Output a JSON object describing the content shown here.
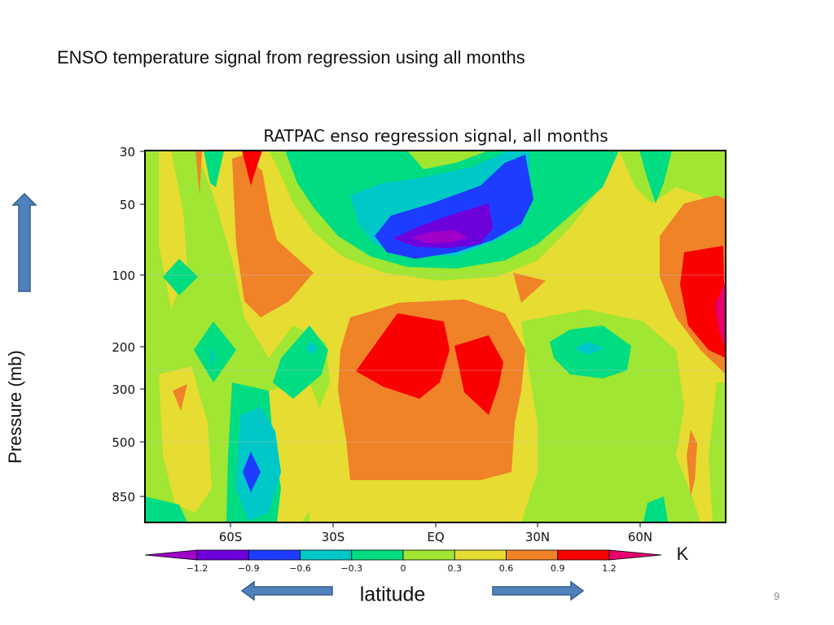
{
  "slide": {
    "title": "ENSO temperature signal from regression using all months",
    "page_number": "9",
    "y_side_label": "Pressure (mb)",
    "x_bottom_label": "latitude"
  },
  "icons": {
    "up_arrow": "up-arrow-icon",
    "left_arrow": "left-arrow-icon",
    "right_arrow": "right-arrow-icon"
  },
  "colors": {
    "arrow_fill": "#4f81bd",
    "arrow_stroke": "#385d8a"
  },
  "chart_data": {
    "type": "heatmap",
    "title": "RATPAC enso regression signal, all months",
    "x_ticks": [
      "60S",
      "30S",
      "EQ",
      "30N",
      "60N"
    ],
    "y_ticks": [
      "30",
      "50",
      "100",
      "200",
      "300",
      "500",
      "850"
    ],
    "y_scale": "log",
    "y_direction": "reversed",
    "colorbar": {
      "unit": "K",
      "levels": [
        "-1.2",
        "-0.9",
        "-0.6",
        "-0.3",
        "0",
        "0.3",
        "0.6",
        "0.9",
        "1.2"
      ],
      "colors": [
        "#a000c8",
        "#6e00dc",
        "#1e3cff",
        "#00c8c8",
        "#00dc82",
        "#a0e632",
        "#e6dc32",
        "#f08228",
        "#fa0000",
        "#e6006e"
      ],
      "extend": "both"
    }
  }
}
